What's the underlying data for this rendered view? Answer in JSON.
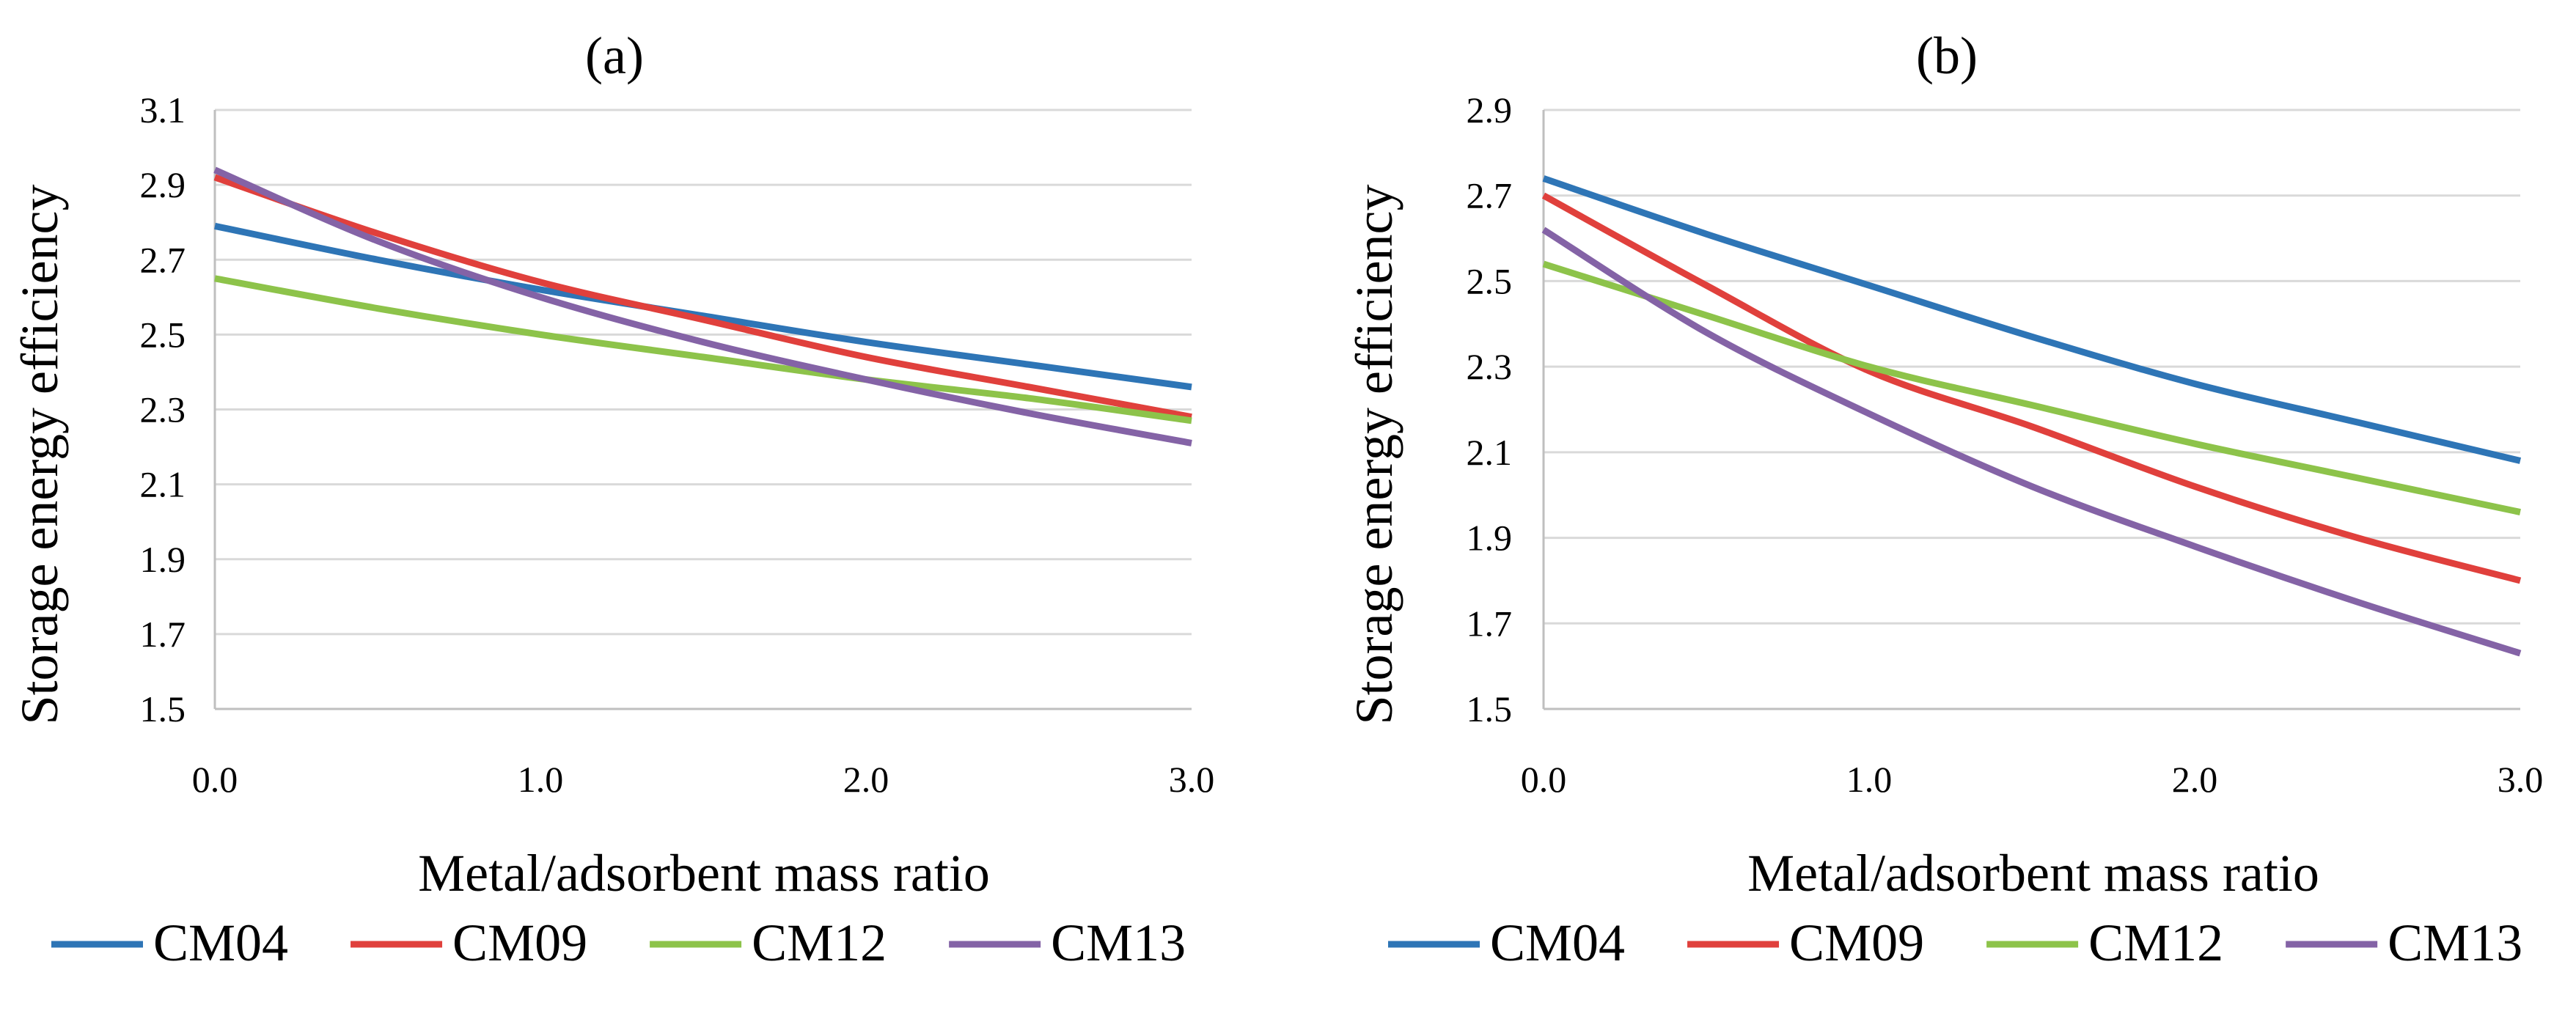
{
  "chart_data": [
    {
      "type": "line",
      "title": "(a)",
      "xlabel": "Metal/adsorbent mass ratio",
      "ylabel": "Storage energy efficiency",
      "xlim": [
        0,
        3
      ],
      "ylim": [
        1.5,
        3.1
      ],
      "xticks": [
        "0.0",
        "1.0",
        "2.0",
        "3.0"
      ],
      "yticks": [
        "1.5",
        "1.7",
        "1.9",
        "2.1",
        "2.3",
        "2.5",
        "2.7",
        "2.9",
        "3.1"
      ],
      "x": [
        0,
        0.5,
        1,
        1.5,
        2,
        2.5,
        3
      ],
      "series": [
        {
          "name": "CM04",
          "color": "#2e75b6",
          "values": [
            2.79,
            2.7,
            2.62,
            2.55,
            2.48,
            2.42,
            2.36
          ]
        },
        {
          "name": "CM09",
          "color": "#e0403c",
          "values": [
            2.92,
            2.77,
            2.64,
            2.54,
            2.44,
            2.36,
            2.28
          ]
        },
        {
          "name": "CM12",
          "color": "#8dc34a",
          "values": [
            2.65,
            2.57,
            2.5,
            2.44,
            2.38,
            2.33,
            2.27
          ]
        },
        {
          "name": "CM13",
          "color": "#8463a6",
          "values": [
            2.94,
            2.75,
            2.6,
            2.48,
            2.38,
            2.29,
            2.21
          ]
        }
      ],
      "legend_position": "bottom"
    },
    {
      "type": "line",
      "title": "(b)",
      "xlabel": "Metal/adsorbent mass ratio",
      "ylabel": "Storage energy efficiency",
      "xlim": [
        0,
        3
      ],
      "ylim": [
        1.5,
        2.9
      ],
      "xticks": [
        "0.0",
        "1.0",
        "2.0",
        "3.0"
      ],
      "yticks": [
        "1.5",
        "1.7",
        "1.9",
        "2.1",
        "2.3",
        "2.5",
        "2.7",
        "2.9"
      ],
      "x": [
        0,
        0.5,
        1,
        1.5,
        2,
        2.5,
        3
      ],
      "series": [
        {
          "name": "CM04",
          "color": "#2e75b6",
          "values": [
            2.74,
            2.61,
            2.49,
            2.37,
            2.26,
            2.17,
            2.08
          ]
        },
        {
          "name": "CM09",
          "color": "#e0403c",
          "values": [
            2.7,
            2.49,
            2.29,
            2.16,
            2.02,
            1.9,
            1.8
          ]
        },
        {
          "name": "CM12",
          "color": "#8dc34a",
          "values": [
            2.54,
            2.42,
            2.3,
            2.21,
            2.12,
            2.04,
            1.96
          ]
        },
        {
          "name": "CM13",
          "color": "#8463a6",
          "values": [
            2.62,
            2.38,
            2.19,
            2.02,
            1.88,
            1.75,
            1.63
          ]
        }
      ],
      "legend_position": "bottom"
    }
  ]
}
